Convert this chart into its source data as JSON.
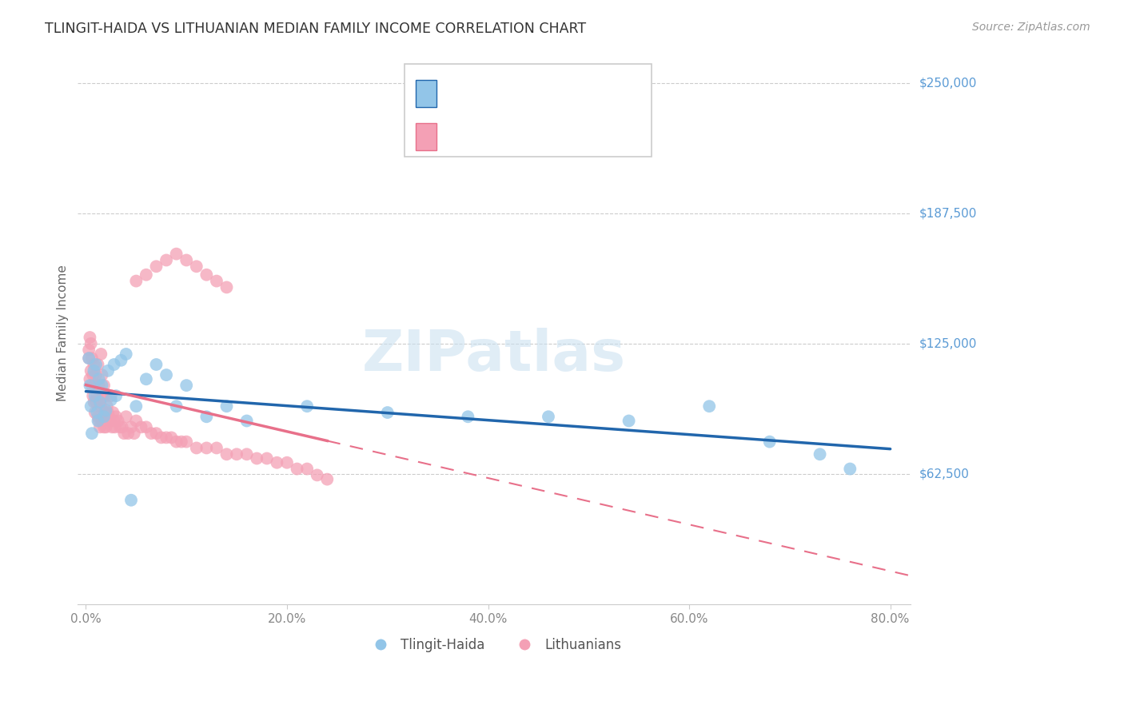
{
  "title": "TLINGIT-HAIDA VS LITHUANIAN MEDIAN FAMILY INCOME CORRELATION CHART",
  "source": "Source: ZipAtlas.com",
  "ylabel": "Median Family Income",
  "y_ticks": [
    62500,
    125000,
    187500,
    250000
  ],
  "y_tick_labels": [
    "$62,500",
    "$125,000",
    "$187,500",
    "$250,000"
  ],
  "x_ticks": [
    0.0,
    0.2,
    0.4,
    0.6,
    0.8
  ],
  "x_tick_labels": [
    "0.0%",
    "20.0%",
    "40.0%",
    "60.0%",
    "80.0%"
  ],
  "x_min": 0.0,
  "x_max": 0.8,
  "y_min": 0,
  "y_max": 260000,
  "tlingit_color": "#92C5E8",
  "lithuanian_color": "#F4A0B5",
  "tlingit_line_color": "#2166AC",
  "lithuanian_line_color": "#E8708A",
  "watermark_text": "ZIPatlas",
  "tlingit_x": [
    0.003,
    0.004,
    0.005,
    0.006,
    0.008,
    0.009,
    0.01,
    0.011,
    0.012,
    0.013,
    0.014,
    0.016,
    0.018,
    0.02,
    0.022,
    0.025,
    0.028,
    0.03,
    0.035,
    0.04,
    0.045,
    0.05,
    0.06,
    0.07,
    0.08,
    0.09,
    0.1,
    0.12,
    0.14,
    0.16,
    0.22,
    0.3,
    0.38,
    0.46,
    0.54,
    0.62,
    0.68,
    0.73,
    0.76
  ],
  "tlingit_y": [
    118000,
    105000,
    95000,
    82000,
    112000,
    100000,
    115000,
    92000,
    88000,
    108000,
    97000,
    105000,
    90000,
    93000,
    112000,
    98000,
    115000,
    100000,
    117000,
    120000,
    50000,
    95000,
    108000,
    115000,
    110000,
    95000,
    105000,
    90000,
    95000,
    88000,
    95000,
    92000,
    90000,
    90000,
    88000,
    95000,
    78000,
    72000,
    65000
  ],
  "lithuanian_x": [
    0.003,
    0.003,
    0.004,
    0.004,
    0.005,
    0.005,
    0.006,
    0.006,
    0.007,
    0.007,
    0.008,
    0.008,
    0.009,
    0.009,
    0.01,
    0.01,
    0.011,
    0.012,
    0.012,
    0.013,
    0.013,
    0.014,
    0.014,
    0.015,
    0.015,
    0.016,
    0.016,
    0.017,
    0.018,
    0.018,
    0.019,
    0.02,
    0.02,
    0.021,
    0.022,
    0.023,
    0.024,
    0.025,
    0.026,
    0.027,
    0.028,
    0.029,
    0.03,
    0.032,
    0.034,
    0.036,
    0.038,
    0.04,
    0.042,
    0.045,
    0.048,
    0.05,
    0.055,
    0.06,
    0.065,
    0.07,
    0.075,
    0.08,
    0.085,
    0.09,
    0.095,
    0.1,
    0.11,
    0.12,
    0.13,
    0.14,
    0.15,
    0.16,
    0.17,
    0.18,
    0.19,
    0.2,
    0.21,
    0.22,
    0.23,
    0.24,
    0.05,
    0.06,
    0.07,
    0.08,
    0.09,
    0.1,
    0.11,
    0.12,
    0.13,
    0.14
  ],
  "lithuanian_y": [
    118000,
    122000,
    128000,
    108000,
    125000,
    112000,
    118000,
    105000,
    110000,
    100000,
    115000,
    97000,
    105000,
    92000,
    110000,
    97000,
    100000,
    115000,
    90000,
    105000,
    88000,
    97000,
    85000,
    120000,
    95000,
    110000,
    88000,
    100000,
    105000,
    85000,
    92000,
    100000,
    85000,
    95000,
    92000,
    90000,
    88000,
    100000,
    85000,
    92000,
    88000,
    85000,
    90000,
    88000,
    85000,
    85000,
    82000,
    90000,
    82000,
    85000,
    82000,
    88000,
    85000,
    85000,
    82000,
    82000,
    80000,
    80000,
    80000,
    78000,
    78000,
    78000,
    75000,
    75000,
    75000,
    72000,
    72000,
    72000,
    70000,
    70000,
    68000,
    68000,
    65000,
    65000,
    62000,
    60000,
    155000,
    158000,
    162000,
    165000,
    168000,
    165000,
    162000,
    158000,
    155000,
    152000
  ]
}
